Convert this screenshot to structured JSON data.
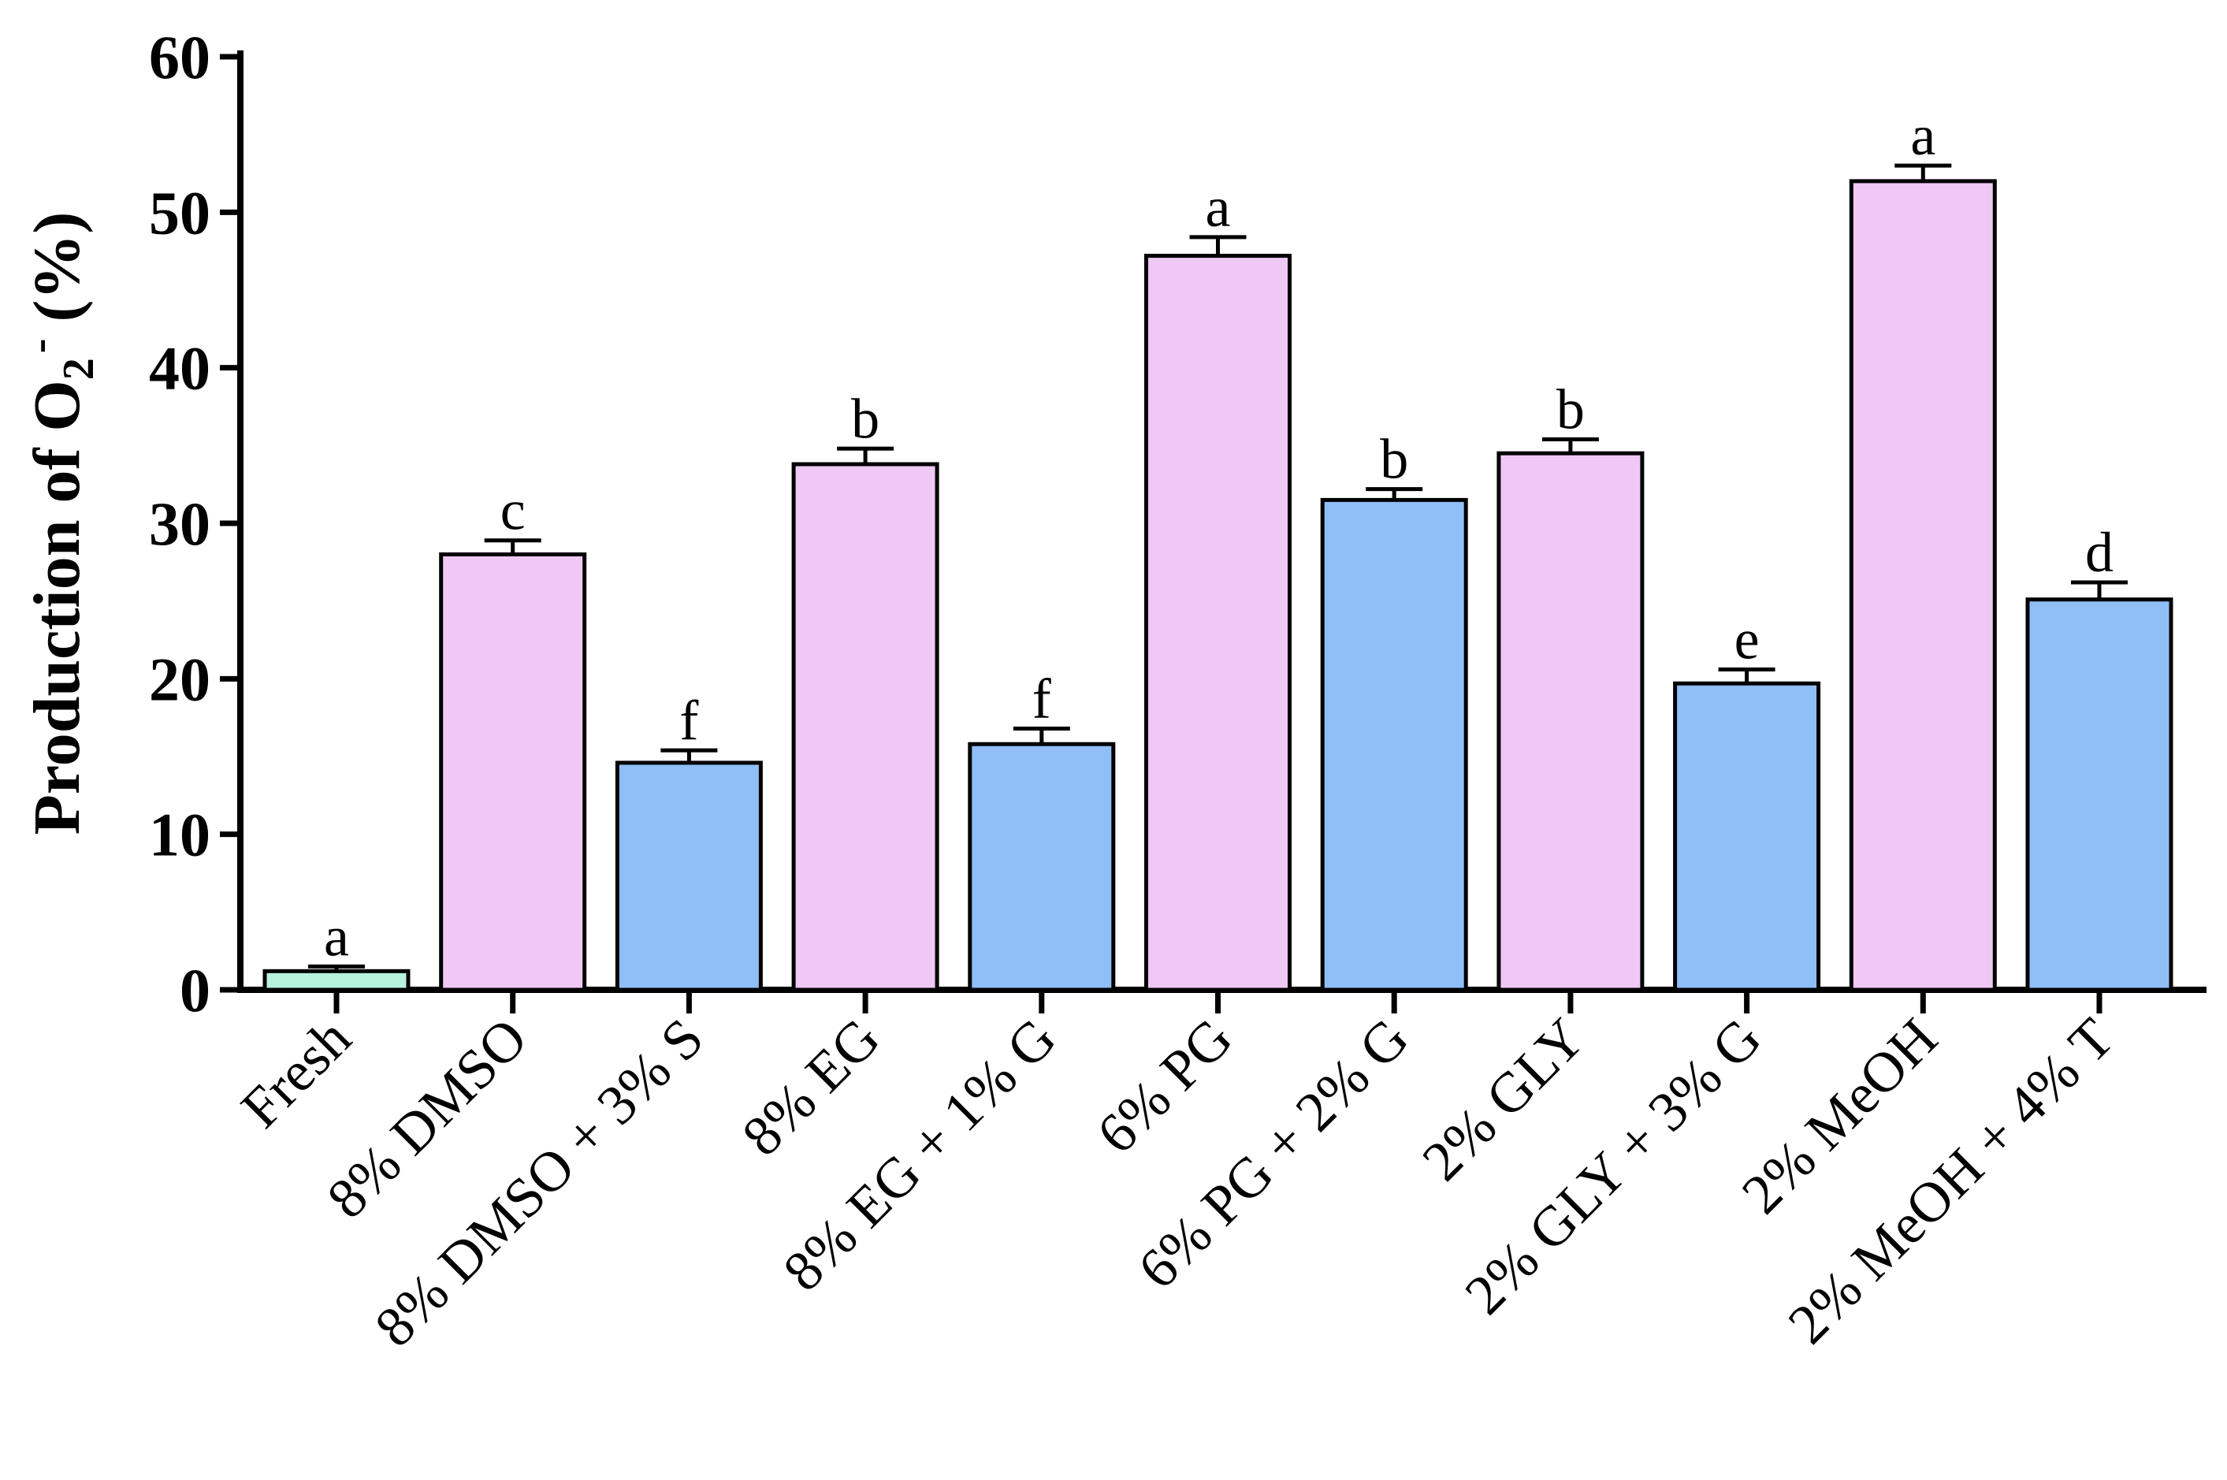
{
  "chart_data": {
    "type": "bar",
    "title": "",
    "xlabel": "",
    "ylabel": {
      "main": "Production of O",
      "subscript": "2",
      "superscript": "-",
      "unit": "(%)"
    },
    "ylim": [
      0,
      60
    ],
    "yticks": [
      0,
      10,
      20,
      30,
      40,
      50,
      60
    ],
    "grid": false,
    "legend": "none",
    "colors": {
      "fresh": "#b7f2dc",
      "single": "#efc8f5",
      "combo": "#90bef7",
      "axis": "#000000"
    },
    "bars": [
      {
        "label": "Fresh",
        "value": 1.2,
        "error": 0.3,
        "sig": "a",
        "group": "fresh"
      },
      {
        "label": "8% DMSO",
        "value": 28.0,
        "error": 0.9,
        "sig": "c",
        "group": "single"
      },
      {
        "label": "8% DMSO + 3% S",
        "value": 14.6,
        "error": 0.8,
        "sig": "f",
        "group": "combo"
      },
      {
        "label": "8% EG",
        "value": 33.8,
        "error": 1.0,
        "sig": "b",
        "group": "single"
      },
      {
        "label": "8% EG + 1% G",
        "value": 15.8,
        "error": 1.0,
        "sig": "f",
        "group": "combo"
      },
      {
        "label": "6% PG",
        "value": 47.2,
        "error": 1.2,
        "sig": "a",
        "group": "single"
      },
      {
        "label": "6% PG + 2% G",
        "value": 31.5,
        "error": 0.7,
        "sig": "b",
        "group": "combo"
      },
      {
        "label": "2% GLY",
        "value": 34.5,
        "error": 0.9,
        "sig": "b",
        "group": "single"
      },
      {
        "label": "2% GLY + 3% G",
        "value": 19.7,
        "error": 0.9,
        "sig": "e",
        "group": "combo"
      },
      {
        "label": "2% MeOH",
        "value": 52.0,
        "error": 1.0,
        "sig": "a",
        "group": "single"
      },
      {
        "label": "2% MeOH + 4% T",
        "value": 25.1,
        "error": 1.1,
        "sig": "d",
        "group": "combo"
      }
    ]
  }
}
